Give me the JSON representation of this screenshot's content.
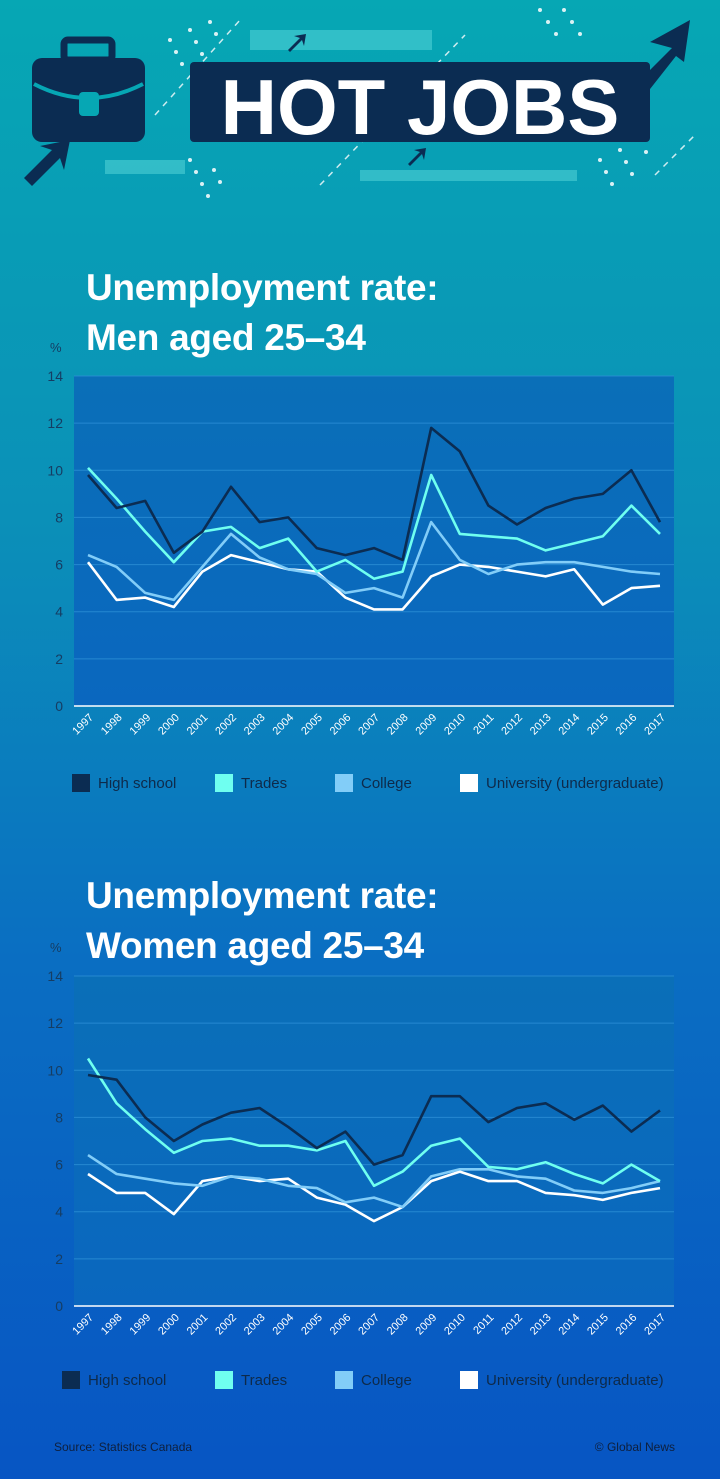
{
  "header": {
    "banner_text": "HOT JOBS"
  },
  "colors": {
    "high_school": "#0b2c52",
    "trades": "#6ffff0",
    "college": "#82cdf8",
    "university": "#ffffff",
    "plot_bg_top": "#0a6fb8",
    "plot_bg_bottom": "#0a67bf",
    "banner_bg": "#0b2c52"
  },
  "icons": [
    "briefcase-icon",
    "arrow-icon"
  ],
  "legend": {
    "items": [
      {
        "label": "High school",
        "color": "#0b2c52"
      },
      {
        "label": "Trades",
        "color": "#6ffff0"
      },
      {
        "label": "College",
        "color": "#82cdf8"
      },
      {
        "label": "University (undergraduate)",
        "color": "#ffffff"
      }
    ]
  },
  "chart_data": [
    {
      "type": "line",
      "title": "Unemployment rate:",
      "subtitle": "Men aged 25–34",
      "ylabel": "%",
      "ylim": [
        0,
        14
      ],
      "yticks": [
        "0",
        "2",
        "4",
        "6",
        "8",
        "10",
        "12",
        "14"
      ],
      "categories": [
        "1997",
        "1998",
        "1999",
        "2000",
        "2001",
        "2002",
        "2003",
        "2004",
        "2005",
        "2006",
        "2007",
        "2008",
        "2009",
        "2010",
        "2011",
        "2012",
        "2013",
        "2014",
        "2015",
        "2016",
        "2017"
      ],
      "grid": true,
      "legend_position": "bottom",
      "series": [
        {
          "name": "High school",
          "values": [
            9.8,
            8.4,
            8.7,
            6.5,
            7.4,
            9.3,
            7.8,
            8.0,
            6.7,
            6.4,
            6.7,
            6.2,
            11.8,
            10.8,
            8.5,
            7.7,
            8.4,
            8.8,
            9.0,
            10.0,
            7.8
          ]
        },
        {
          "name": "Trades",
          "values": [
            10.1,
            8.8,
            7.4,
            6.1,
            7.4,
            7.6,
            6.7,
            7.1,
            5.7,
            6.2,
            5.4,
            5.7,
            9.8,
            7.3,
            7.2,
            7.1,
            6.6,
            6.9,
            7.2,
            8.5,
            7.3
          ]
        },
        {
          "name": "College",
          "values": [
            6.4,
            5.9,
            4.8,
            4.5,
            5.9,
            7.3,
            6.3,
            5.8,
            5.6,
            4.8,
            5.0,
            4.6,
            7.8,
            6.2,
            5.6,
            6.0,
            6.1,
            6.1,
            5.9,
            5.7,
            5.6
          ]
        },
        {
          "name": "University (undergraduate)",
          "values": [
            6.1,
            4.5,
            4.6,
            4.2,
            5.7,
            6.4,
            6.1,
            5.8,
            5.7,
            4.6,
            4.1,
            4.1,
            5.5,
            6.0,
            5.9,
            5.7,
            5.5,
            5.8,
            4.3,
            5.0,
            5.1
          ]
        }
      ]
    },
    {
      "type": "line",
      "title": "Unemployment rate:",
      "subtitle": "Women aged 25–34",
      "ylabel": "%",
      "ylim": [
        0,
        14
      ],
      "yticks": [
        "0",
        "2",
        "4",
        "6",
        "8",
        "10",
        "12",
        "14"
      ],
      "categories": [
        "1997",
        "1998",
        "1999",
        "2000",
        "2001",
        "2002",
        "2003",
        "2004",
        "2005",
        "2006",
        "2007",
        "2008",
        "2009",
        "2010",
        "2011",
        "2012",
        "2013",
        "2014",
        "2015",
        "2016",
        "2017"
      ],
      "grid": true,
      "legend_position": "bottom",
      "series": [
        {
          "name": "High school",
          "values": [
            9.8,
            9.6,
            8.0,
            7.0,
            7.7,
            8.2,
            8.4,
            7.6,
            6.7,
            7.4,
            6.0,
            6.4,
            8.9,
            8.9,
            7.8,
            8.4,
            8.6,
            7.9,
            8.5,
            7.4,
            8.3
          ]
        },
        {
          "name": "Trades",
          "values": [
            10.5,
            8.6,
            7.5,
            6.5,
            7.0,
            7.1,
            6.8,
            6.8,
            6.6,
            7.0,
            5.1,
            5.7,
            6.8,
            7.1,
            5.9,
            5.8,
            6.1,
            5.6,
            5.2,
            6.0,
            5.3
          ]
        },
        {
          "name": "College",
          "values": [
            6.4,
            5.6,
            5.4,
            5.2,
            5.1,
            5.5,
            5.4,
            5.1,
            5.0,
            4.4,
            4.6,
            4.2,
            5.5,
            5.8,
            5.8,
            5.5,
            5.4,
            4.9,
            4.8,
            5.0,
            5.3
          ]
        },
        {
          "name": "University (undergraduate)",
          "values": [
            5.6,
            4.8,
            4.8,
            3.9,
            5.3,
            5.5,
            5.3,
            5.4,
            4.6,
            4.3,
            3.6,
            4.2,
            5.3,
            5.7,
            5.3,
            5.3,
            4.8,
            4.7,
            4.5,
            4.8,
            5.0
          ]
        }
      ]
    }
  ],
  "footer": {
    "source": "Source: Statistics Canada",
    "credit": "© Global News"
  }
}
